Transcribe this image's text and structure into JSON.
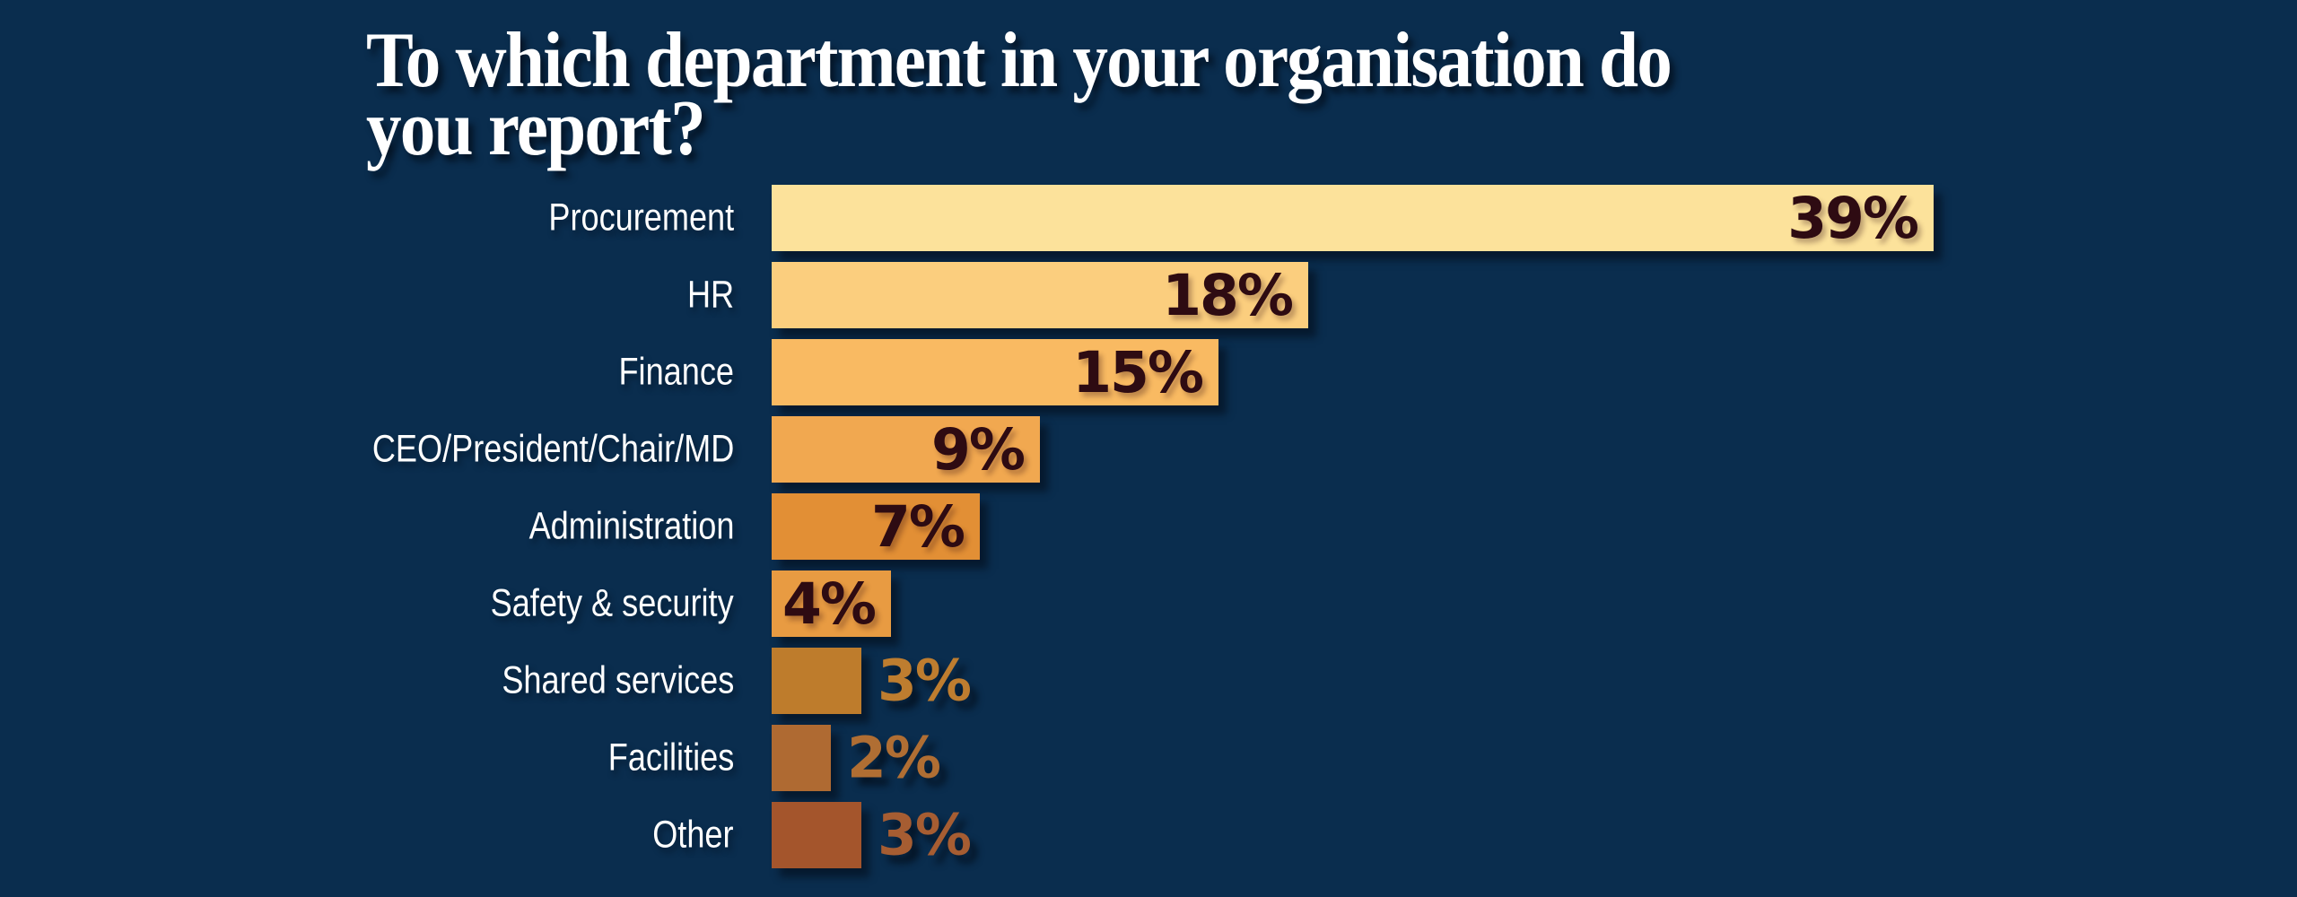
{
  "page": {
    "background_color": "#0A2D4E"
  },
  "chart_data": {
    "type": "bar",
    "orientation": "horizontal",
    "title": "To which department in your organisation do you report?",
    "title_lines": [
      "To which department in your organisation do",
      "you report?"
    ],
    "title_color": "#FFFFFF",
    "xlabel": "",
    "ylabel": "",
    "unit": "%",
    "xlim": [
      0,
      42
    ],
    "grid": false,
    "legend": false,
    "category_label_color": "#FFFFFF",
    "inside_value_color": "#2E0B12",
    "categories": [
      "Procurement",
      "HR",
      "Finance",
      "CEO/President/Chair/MD",
      "Administration",
      "Safety & security",
      "Shared services",
      "Facilities",
      "Other"
    ],
    "values": [
      39,
      18,
      15,
      9,
      7,
      4,
      3,
      2,
      3
    ],
    "rows": [
      {
        "label": "Procurement",
        "value": 39,
        "display": "39%",
        "bar_color": "#FCE29B",
        "value_placement": "inside",
        "value_color": "#2E0B12"
      },
      {
        "label": "HR",
        "value": 18,
        "display": "18%",
        "bar_color": "#FBCE7E",
        "value_placement": "inside",
        "value_color": "#2E0B12"
      },
      {
        "label": "Finance",
        "value": 15,
        "display": "15%",
        "bar_color": "#F9BA62",
        "value_placement": "inside",
        "value_color": "#2E0B12"
      },
      {
        "label": "CEO/President/Chair/MD",
        "value": 9,
        "display": "9%",
        "bar_color": "#F1A850",
        "value_placement": "inside",
        "value_color": "#2E0B12"
      },
      {
        "label": "Administration",
        "value": 7,
        "display": "7%",
        "bar_color": "#E28F35",
        "value_placement": "inside",
        "value_color": "#2E0B12"
      },
      {
        "label": "Safety & security",
        "value": 4,
        "display": "4%",
        "bar_color": "#E89B42",
        "value_placement": "inside",
        "value_color": "#2E0B12"
      },
      {
        "label": "Shared services",
        "value": 3,
        "display": "3%",
        "bar_color": "#BE7C2C",
        "value_placement": "outside",
        "value_color": "#BE7D2F"
      },
      {
        "label": "Facilities",
        "value": 2,
        "display": "2%",
        "bar_color": "#AF6A32",
        "value_placement": "outside",
        "value_color": "#B06E33"
      },
      {
        "label": "Other",
        "value": 3,
        "display": "3%",
        "bar_color": "#A4552C",
        "value_placement": "outside",
        "value_color": "#A65D32"
      }
    ]
  },
  "layout_note": ""
}
